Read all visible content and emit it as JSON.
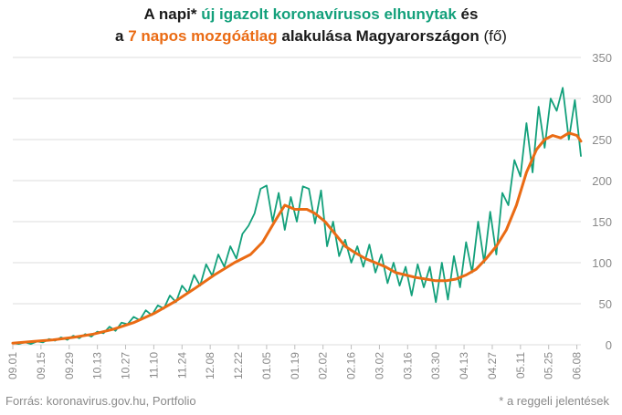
{
  "title": {
    "line1_prefix": "A napi* ",
    "line1_green": "új igazolt koronavírusos elhunytak",
    "line1_suffix": " és",
    "line2_prefix": "a ",
    "line2_orange": "7 napos mozgóátlag",
    "line2_mid": " alakulása Magyarországon ",
    "line2_suffix": "(fő)"
  },
  "source": "Forrás: koronavirus.gov.hu, Portfolio",
  "footnote": "* a reggeli jelentések",
  "colors": {
    "daily": "#13a07b",
    "average": "#ea6b14",
    "grid": "#dedede",
    "axis_text": "#8a8a8a"
  },
  "chart_data": {
    "type": "line",
    "xlabel": "",
    "ylabel": "",
    "ylim": [
      0,
      350
    ],
    "yticks": [
      0,
      50,
      100,
      150,
      200,
      250,
      300,
      350
    ],
    "x_tick_labels": [
      "09.01",
      "09.15",
      "09.29",
      "10.13",
      "10.27",
      "11.10",
      "11.24",
      "12.08",
      "12.22",
      "01.05",
      "01.19",
      "02.02",
      "02.16",
      "03.02",
      "03.16",
      "03.30",
      "04.13",
      "04.27",
      "05.11",
      "05.25",
      "06.08"
    ],
    "tick_step_days": 14,
    "x_last_day_index": 282,
    "grid": true,
    "series": [
      {
        "role": "daily",
        "points": [
          [
            0,
            2
          ],
          [
            3,
            1
          ],
          [
            6,
            3
          ],
          [
            9,
            1
          ],
          [
            12,
            4
          ],
          [
            15,
            3
          ],
          [
            18,
            7
          ],
          [
            21,
            5
          ],
          [
            24,
            9
          ],
          [
            27,
            6
          ],
          [
            30,
            11
          ],
          [
            33,
            8
          ],
          [
            36,
            13
          ],
          [
            39,
            10
          ],
          [
            42,
            16
          ],
          [
            45,
            14
          ],
          [
            48,
            22
          ],
          [
            51,
            17
          ],
          [
            54,
            27
          ],
          [
            57,
            25
          ],
          [
            60,
            34
          ],
          [
            63,
            30
          ],
          [
            66,
            42
          ],
          [
            69,
            36
          ],
          [
            72,
            48
          ],
          [
            75,
            44
          ],
          [
            78,
            60
          ],
          [
            81,
            52
          ],
          [
            84,
            72
          ],
          [
            87,
            63
          ],
          [
            90,
            85
          ],
          [
            93,
            72
          ],
          [
            96,
            98
          ],
          [
            99,
            84
          ],
          [
            102,
            110
          ],
          [
            105,
            95
          ],
          [
            108,
            120
          ],
          [
            111,
            105
          ],
          [
            114,
            135
          ],
          [
            117,
            145
          ],
          [
            120,
            160
          ],
          [
            123,
            190
          ],
          [
            126,
            194
          ],
          [
            129,
            150
          ],
          [
            132,
            185
          ],
          [
            135,
            140
          ],
          [
            138,
            180
          ],
          [
            141,
            150
          ],
          [
            144,
            193
          ],
          [
            147,
            190
          ],
          [
            150,
            148
          ],
          [
            153,
            188
          ],
          [
            156,
            120
          ],
          [
            159,
            150
          ],
          [
            162,
            108
          ],
          [
            165,
            128
          ],
          [
            168,
            100
          ],
          [
            171,
            120
          ],
          [
            174,
            95
          ],
          [
            177,
            122
          ],
          [
            180,
            88
          ],
          [
            183,
            110
          ],
          [
            186,
            75
          ],
          [
            189,
            100
          ],
          [
            192,
            72
          ],
          [
            195,
            95
          ],
          [
            198,
            60
          ],
          [
            201,
            98
          ],
          [
            204,
            70
          ],
          [
            207,
            95
          ],
          [
            210,
            52
          ],
          [
            213,
            100
          ],
          [
            216,
            55
          ],
          [
            219,
            108
          ],
          [
            222,
            70
          ],
          [
            225,
            125
          ],
          [
            228,
            88
          ],
          [
            231,
            150
          ],
          [
            234,
            100
          ],
          [
            237,
            162
          ],
          [
            240,
            110
          ],
          [
            243,
            185
          ],
          [
            246,
            170
          ],
          [
            249,
            225
          ],
          [
            252,
            205
          ],
          [
            255,
            270
          ],
          [
            258,
            210
          ],
          [
            261,
            290
          ],
          [
            264,
            240
          ],
          [
            267,
            300
          ],
          [
            270,
            285
          ],
          [
            273,
            313
          ],
          [
            276,
            250
          ],
          [
            279,
            298
          ],
          [
            282,
            230
          ]
        ]
      },
      {
        "role": "average",
        "points": [
          [
            0,
            2
          ],
          [
            10,
            4
          ],
          [
            20,
            6
          ],
          [
            30,
            9
          ],
          [
            40,
            13
          ],
          [
            50,
            19
          ],
          [
            60,
            27
          ],
          [
            70,
            38
          ],
          [
            80,
            52
          ],
          [
            90,
            68
          ],
          [
            100,
            85
          ],
          [
            110,
            100
          ],
          [
            118,
            110
          ],
          [
            124,
            125
          ],
          [
            130,
            150
          ],
          [
            135,
            170
          ],
          [
            140,
            165
          ],
          [
            146,
            165
          ],
          [
            150,
            160
          ],
          [
            155,
            150
          ],
          [
            160,
            135
          ],
          [
            165,
            120
          ],
          [
            170,
            112
          ],
          [
            175,
            105
          ],
          [
            180,
            100
          ],
          [
            185,
            95
          ],
          [
            190,
            88
          ],
          [
            195,
            85
          ],
          [
            200,
            82
          ],
          [
            205,
            80
          ],
          [
            210,
            78
          ],
          [
            215,
            78
          ],
          [
            220,
            80
          ],
          [
            225,
            85
          ],
          [
            230,
            92
          ],
          [
            235,
            105
          ],
          [
            240,
            120
          ],
          [
            245,
            140
          ],
          [
            250,
            170
          ],
          [
            255,
            210
          ],
          [
            260,
            238
          ],
          [
            264,
            250
          ],
          [
            268,
            255
          ],
          [
            272,
            252
          ],
          [
            276,
            258
          ],
          [
            280,
            255
          ],
          [
            282,
            248
          ]
        ]
      }
    ]
  }
}
